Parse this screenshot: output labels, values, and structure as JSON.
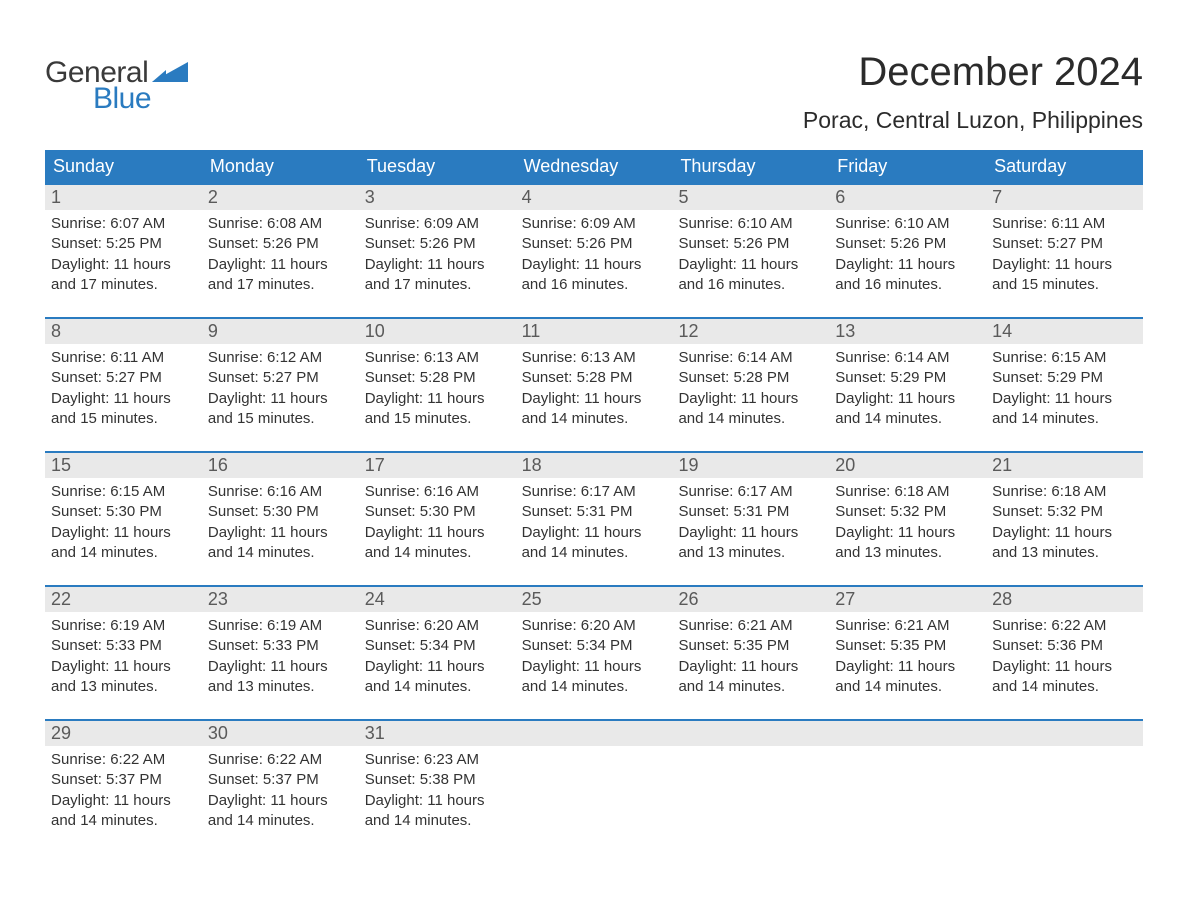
{
  "logo": {
    "text_general": "General",
    "text_blue": "Blue",
    "flag_color": "#2a7bc0"
  },
  "header": {
    "month_title": "December 2024",
    "location": "Porac, Central Luzon, Philippines"
  },
  "colors": {
    "header_bg": "#2a7bc0",
    "header_text": "#ffffff",
    "daynum_bg": "#e9e9e9",
    "daynum_text": "#5a5a5a",
    "body_text": "#333333",
    "week_border": "#2a7bc0",
    "page_bg": "#ffffff"
  },
  "fonts": {
    "month_title_pt": 40,
    "location_pt": 23,
    "weekday_pt": 18,
    "daynum_pt": 18,
    "detail_pt": 15
  },
  "table": {
    "columns": [
      "Sunday",
      "Monday",
      "Tuesday",
      "Wednesday",
      "Thursday",
      "Friday",
      "Saturday"
    ],
    "weeks": [
      [
        {
          "n": "1",
          "sr": "6:07 AM",
          "ss": "5:25 PM",
          "dl": "11 hours and 17 minutes."
        },
        {
          "n": "2",
          "sr": "6:08 AM",
          "ss": "5:26 PM",
          "dl": "11 hours and 17 minutes."
        },
        {
          "n": "3",
          "sr": "6:09 AM",
          "ss": "5:26 PM",
          "dl": "11 hours and 17 minutes."
        },
        {
          "n": "4",
          "sr": "6:09 AM",
          "ss": "5:26 PM",
          "dl": "11 hours and 16 minutes."
        },
        {
          "n": "5",
          "sr": "6:10 AM",
          "ss": "5:26 PM",
          "dl": "11 hours and 16 minutes."
        },
        {
          "n": "6",
          "sr": "6:10 AM",
          "ss": "5:26 PM",
          "dl": "11 hours and 16 minutes."
        },
        {
          "n": "7",
          "sr": "6:11 AM",
          "ss": "5:27 PM",
          "dl": "11 hours and 15 minutes."
        }
      ],
      [
        {
          "n": "8",
          "sr": "6:11 AM",
          "ss": "5:27 PM",
          "dl": "11 hours and 15 minutes."
        },
        {
          "n": "9",
          "sr": "6:12 AM",
          "ss": "5:27 PM",
          "dl": "11 hours and 15 minutes."
        },
        {
          "n": "10",
          "sr": "6:13 AM",
          "ss": "5:28 PM",
          "dl": "11 hours and 15 minutes."
        },
        {
          "n": "11",
          "sr": "6:13 AM",
          "ss": "5:28 PM",
          "dl": "11 hours and 14 minutes."
        },
        {
          "n": "12",
          "sr": "6:14 AM",
          "ss": "5:28 PM",
          "dl": "11 hours and 14 minutes."
        },
        {
          "n": "13",
          "sr": "6:14 AM",
          "ss": "5:29 PM",
          "dl": "11 hours and 14 minutes."
        },
        {
          "n": "14",
          "sr": "6:15 AM",
          "ss": "5:29 PM",
          "dl": "11 hours and 14 minutes."
        }
      ],
      [
        {
          "n": "15",
          "sr": "6:15 AM",
          "ss": "5:30 PM",
          "dl": "11 hours and 14 minutes."
        },
        {
          "n": "16",
          "sr": "6:16 AM",
          "ss": "5:30 PM",
          "dl": "11 hours and 14 minutes."
        },
        {
          "n": "17",
          "sr": "6:16 AM",
          "ss": "5:30 PM",
          "dl": "11 hours and 14 minutes."
        },
        {
          "n": "18",
          "sr": "6:17 AM",
          "ss": "5:31 PM",
          "dl": "11 hours and 14 minutes."
        },
        {
          "n": "19",
          "sr": "6:17 AM",
          "ss": "5:31 PM",
          "dl": "11 hours and 13 minutes."
        },
        {
          "n": "20",
          "sr": "6:18 AM",
          "ss": "5:32 PM",
          "dl": "11 hours and 13 minutes."
        },
        {
          "n": "21",
          "sr": "6:18 AM",
          "ss": "5:32 PM",
          "dl": "11 hours and 13 minutes."
        }
      ],
      [
        {
          "n": "22",
          "sr": "6:19 AM",
          "ss": "5:33 PM",
          "dl": "11 hours and 13 minutes."
        },
        {
          "n": "23",
          "sr": "6:19 AM",
          "ss": "5:33 PM",
          "dl": "11 hours and 13 minutes."
        },
        {
          "n": "24",
          "sr": "6:20 AM",
          "ss": "5:34 PM",
          "dl": "11 hours and 14 minutes."
        },
        {
          "n": "25",
          "sr": "6:20 AM",
          "ss": "5:34 PM",
          "dl": "11 hours and 14 minutes."
        },
        {
          "n": "26",
          "sr": "6:21 AM",
          "ss": "5:35 PM",
          "dl": "11 hours and 14 minutes."
        },
        {
          "n": "27",
          "sr": "6:21 AM",
          "ss": "5:35 PM",
          "dl": "11 hours and 14 minutes."
        },
        {
          "n": "28",
          "sr": "6:22 AM",
          "ss": "5:36 PM",
          "dl": "11 hours and 14 minutes."
        }
      ],
      [
        {
          "n": "29",
          "sr": "6:22 AM",
          "ss": "5:37 PM",
          "dl": "11 hours and 14 minutes."
        },
        {
          "n": "30",
          "sr": "6:22 AM",
          "ss": "5:37 PM",
          "dl": "11 hours and 14 minutes."
        },
        {
          "n": "31",
          "sr": "6:23 AM",
          "ss": "5:38 PM",
          "dl": "11 hours and 14 minutes."
        },
        null,
        null,
        null,
        null
      ]
    ],
    "labels": {
      "sunrise": "Sunrise:",
      "sunset": "Sunset:",
      "daylight": "Daylight:"
    }
  }
}
